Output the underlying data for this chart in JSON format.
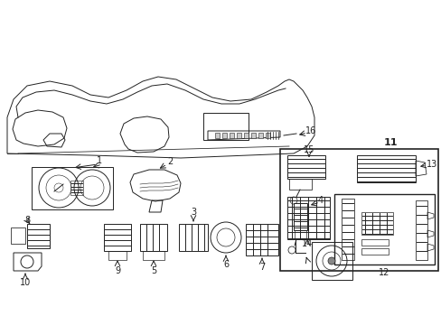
{
  "bg_color": "#ffffff",
  "lc": "#222222",
  "lw": 0.7,
  "figsize": [
    4.89,
    3.6
  ],
  "dpi": 100
}
